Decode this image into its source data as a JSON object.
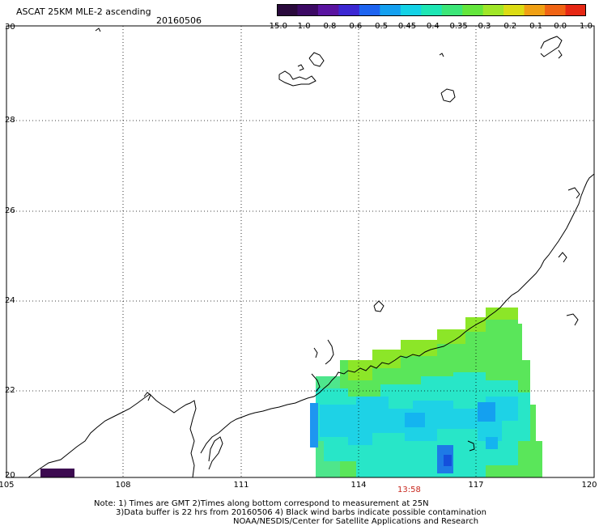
{
  "header": {
    "title": "ASCAT 25KM MLE-2 ascending",
    "date": "20160506"
  },
  "colorbar": {
    "labels": [
      "-15.0",
      "-1.0",
      "-0.8",
      "-0.6",
      "-0.5",
      "-0.45",
      "-0.4",
      "-0.35",
      "-0.3",
      "-0.2",
      "-0.1",
      "0.0",
      "1.0"
    ],
    "colors": [
      "#2a0a3c",
      "#3c0a64",
      "#5a14a0",
      "#3c28d2",
      "#1e64f0",
      "#14a0f0",
      "#14d2e6",
      "#1ee6b4",
      "#3ce678",
      "#64e63c",
      "#a0e628",
      "#dcdc14",
      "#f0a014",
      "#f06414",
      "#e62814"
    ]
  },
  "axes": {
    "latitudes": [
      "30",
      "28",
      "26",
      "24",
      "22",
      "20"
    ],
    "longitudes": [
      "105",
      "108",
      "111",
      "114",
      "117",
      "120"
    ]
  },
  "time_label": "13:58",
  "footer": {
    "line1": "Note: 1) Times are GMT 2)Times along bottom correspond to measurement at 25N",
    "line2": "3)Data buffer is 22 hrs from 20160506 4) Black wind barbs indicate possible contamination",
    "line3": "NOAA/NESDIS/Center for Satellite Applications and Research"
  }
}
